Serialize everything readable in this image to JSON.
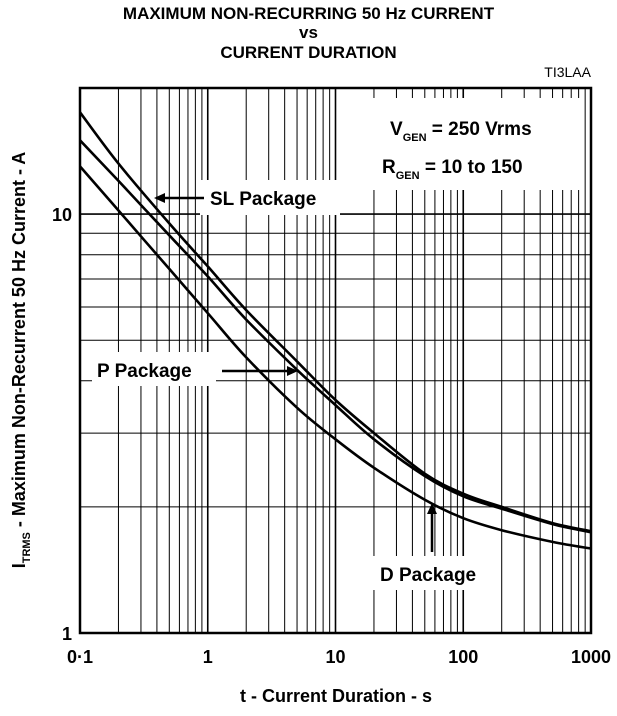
{
  "chart_data": {
    "type": "line",
    "title_lines": [
      "MAXIMUM NON-RECURRING 50 Hz CURRENT",
      "vs",
      "CURRENT DURATION"
    ],
    "figure_code": "TI3LAA",
    "xlabel": "t - Current Duration - s",
    "ylabel": {
      "symbol": "I",
      "subscript": "TRMS",
      "text": " -  Maximum  Non-Recurrent 50 Hz Current  - A"
    },
    "x_scale": "log",
    "y_scale": "log",
    "xlim": [
      0.1,
      1000
    ],
    "ylim": [
      1,
      20
    ],
    "x_ticks": [
      {
        "value": 0.1,
        "label": "0·1"
      },
      {
        "value": 1,
        "label": "1"
      },
      {
        "value": 10,
        "label": "10"
      },
      {
        "value": 100,
        "label": "100"
      },
      {
        "value": 1000,
        "label": "1000"
      }
    ],
    "y_ticks": [
      {
        "value": 1,
        "label": "1"
      },
      {
        "value": 10,
        "label": "10"
      }
    ],
    "grid": true,
    "conditions": [
      {
        "symbol": "V",
        "subscript": "GEN",
        "text": " = 250 Vrms"
      },
      {
        "symbol": "R",
        "subscript": "GEN",
        "text": " = 10 to 150"
      }
    ],
    "series": [
      {
        "name": "SL Package",
        "x": [
          0.1,
          0.2,
          0.5,
          1,
          2,
          5,
          10,
          20,
          50,
          100,
          200,
          500,
          1000
        ],
        "y": [
          17.5,
          13.2,
          9.5,
          7.5,
          5.9,
          4.45,
          3.6,
          3.0,
          2.4,
          2.15,
          2.0,
          1.83,
          1.75
        ]
      },
      {
        "name": "P Package",
        "x": [
          0.1,
          0.2,
          0.5,
          1,
          2,
          5,
          10,
          20,
          50,
          100,
          200,
          500,
          1000
        ],
        "y": [
          15.0,
          12.0,
          8.9,
          7.1,
          5.6,
          4.25,
          3.5,
          2.9,
          2.37,
          2.12,
          1.98,
          1.82,
          1.74
        ]
      },
      {
        "name": "D Package",
        "x": [
          0.1,
          0.2,
          0.5,
          1,
          2,
          5,
          10,
          20,
          50,
          100,
          200,
          500,
          1000
        ],
        "y": [
          13.0,
          10.2,
          7.4,
          5.8,
          4.55,
          3.45,
          2.9,
          2.48,
          2.08,
          1.88,
          1.76,
          1.65,
          1.59
        ]
      }
    ],
    "annotations": [
      {
        "series": "SL Package",
        "text": "SL Package"
      },
      {
        "series": "P Package",
        "text": "P Package"
      },
      {
        "series": "D Package",
        "text": "D Package"
      }
    ]
  }
}
